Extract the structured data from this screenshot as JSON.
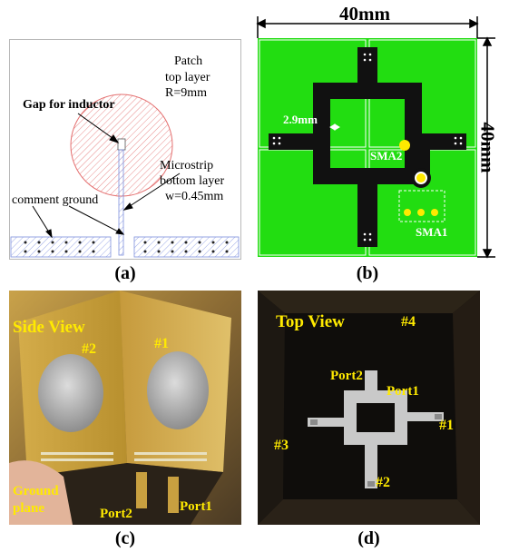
{
  "panel_a": {
    "patch_label": "Patch",
    "patch_layer": "top layer",
    "patch_radius": "R=9mm",
    "gap_label": "Gap for inductor",
    "microstrip_label": "Microstrip",
    "microstrip_layer": "bottom layer",
    "microstrip_width": "w=0.45mm",
    "ground_label": "comment ground",
    "caption": "(a)"
  },
  "panel_b": {
    "width_label": "40mm",
    "height_label": "40mm",
    "gap_dim": "2.9mm",
    "sma2_label": "SMA2",
    "sma1_label": "SMA1",
    "caption": "(b)",
    "colors": {
      "board": "#22dd11",
      "trace": "#111111",
      "pad": "#ffea00"
    }
  },
  "panel_c": {
    "title": "Side View",
    "face1": "#1",
    "face2": "#2",
    "ground": "Ground",
    "plane": "plane",
    "port2": "Port2",
    "port1": "Port1",
    "caption": "(c)"
  },
  "panel_d": {
    "title": "Top View",
    "face4": "#4",
    "port2": "Port2",
    "port1": "Port1",
    "face1": "#1",
    "face3": "#3",
    "face2": "#2",
    "caption": "(d)"
  }
}
